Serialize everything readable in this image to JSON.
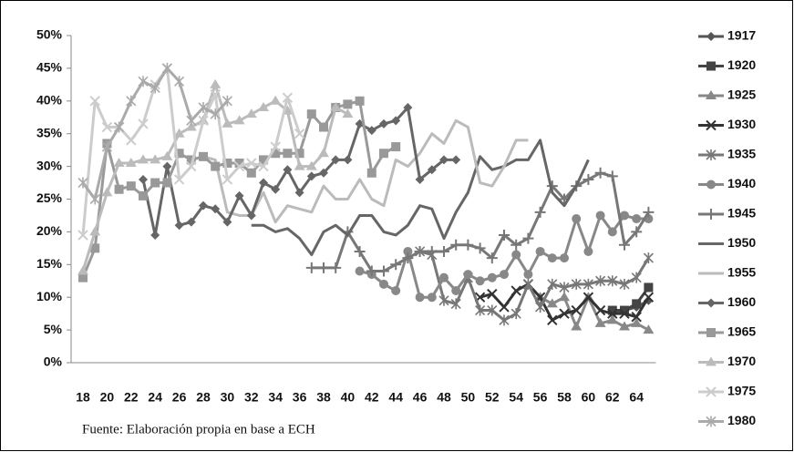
{
  "chart_data": {
    "type": "line",
    "source": "Fuente: Elaboración propia en base a ECH",
    "categories": [
      18,
      null,
      20,
      null,
      22,
      null,
      24,
      null,
      26,
      null,
      28,
      null,
      30,
      null,
      32,
      null,
      34,
      null,
      36,
      null,
      38,
      null,
      40,
      null,
      42,
      null,
      44,
      null,
      46,
      null,
      48,
      null,
      50,
      null,
      52,
      null,
      54,
      null,
      56,
      null,
      58,
      null,
      60,
      null,
      62,
      null,
      64,
      null
    ],
    "ylim": [
      0,
      50
    ],
    "yticks": [
      {
        "value": 0,
        "label": "0%"
      },
      {
        "value": 5,
        "label": "5%"
      },
      {
        "value": 10,
        "label": "10%"
      },
      {
        "value": 15,
        "label": "15%"
      },
      {
        "value": 20,
        "label": "20%"
      },
      {
        "value": 25,
        "label": "25%"
      },
      {
        "value": 30,
        "label": "30%"
      },
      {
        "value": 35,
        "label": "35%"
      },
      {
        "value": 40,
        "label": "40%"
      },
      {
        "value": 45,
        "label": "45%"
      },
      {
        "value": 50,
        "label": "50%"
      }
    ],
    "grid": false,
    "legend": "right",
    "series": [
      {
        "name": "1917",
        "color": "#555555",
        "marker": "diamond",
        "values": [
          null,
          null,
          null,
          null,
          null,
          null,
          null,
          null,
          null,
          null,
          null,
          null,
          null,
          null,
          null,
          null,
          null,
          null,
          null,
          null,
          null,
          null,
          null,
          null,
          null,
          null,
          null,
          null,
          null,
          null,
          null,
          null,
          null,
          null,
          null,
          null,
          null,
          null,
          null,
          null,
          null,
          null,
          null,
          null,
          7.5,
          8,
          8.5,
          9.5
        ]
      },
      {
        "name": "1920",
        "color": "#444444",
        "marker": "square",
        "values": [
          null,
          null,
          null,
          null,
          null,
          null,
          null,
          null,
          null,
          null,
          null,
          null,
          null,
          null,
          null,
          null,
          null,
          null,
          null,
          null,
          null,
          null,
          null,
          null,
          null,
          null,
          null,
          null,
          null,
          null,
          null,
          null,
          null,
          null,
          null,
          null,
          null,
          null,
          null,
          null,
          null,
          null,
          null,
          null,
          8,
          8,
          9,
          11.5
        ]
      },
      {
        "name": "1925",
        "color": "#888888",
        "marker": "triangle",
        "values": [
          null,
          null,
          null,
          null,
          null,
          null,
          null,
          null,
          null,
          null,
          null,
          null,
          null,
          null,
          null,
          null,
          null,
          null,
          null,
          null,
          null,
          null,
          null,
          null,
          null,
          null,
          null,
          null,
          null,
          null,
          null,
          null,
          null,
          null,
          null,
          null,
          null,
          null,
          10,
          9,
          10,
          5.5,
          10,
          6,
          6.5,
          5.5,
          6,
          5
        ]
      },
      {
        "name": "1930",
        "color": "#333333",
        "marker": "x",
        "values": [
          null,
          null,
          null,
          null,
          null,
          null,
          null,
          null,
          null,
          null,
          null,
          null,
          null,
          null,
          null,
          null,
          null,
          null,
          null,
          null,
          null,
          null,
          null,
          null,
          null,
          null,
          null,
          null,
          null,
          null,
          null,
          null,
          null,
          10,
          10.5,
          8.5,
          11,
          12,
          10,
          6.5,
          7.5,
          8,
          10,
          8,
          7.5,
          7.5,
          7,
          10
        ]
      },
      {
        "name": "1935",
        "color": "#777777",
        "marker": "star",
        "values": [
          null,
          null,
          null,
          null,
          null,
          null,
          null,
          null,
          null,
          null,
          null,
          null,
          null,
          null,
          null,
          null,
          null,
          null,
          null,
          null,
          null,
          null,
          null,
          null,
          null,
          null,
          null,
          null,
          17,
          16.5,
          9.5,
          9,
          13,
          8,
          8,
          6.5,
          7.5,
          12,
          8.5,
          12,
          11.5,
          12,
          12,
          12.5,
          12.5,
          12,
          13,
          16
        ]
      },
      {
        "name": "1940",
        "color": "#888888",
        "marker": "circle",
        "values": [
          null,
          null,
          null,
          null,
          null,
          null,
          null,
          null,
          null,
          null,
          null,
          null,
          null,
          null,
          null,
          null,
          null,
          null,
          null,
          null,
          null,
          null,
          null,
          14,
          13.5,
          12,
          11,
          17,
          10,
          10,
          13,
          11,
          13.5,
          12.5,
          13,
          13.5,
          16.5,
          13.5,
          17,
          16,
          16,
          22,
          17,
          22.5,
          20,
          22.5,
          22,
          22
        ]
      },
      {
        "name": "1945",
        "color": "#777777",
        "marker": "plus",
        "values": [
          null,
          null,
          null,
          null,
          null,
          null,
          null,
          null,
          null,
          null,
          null,
          null,
          null,
          null,
          null,
          null,
          null,
          null,
          null,
          14.5,
          14.5,
          14.5,
          20,
          17,
          14,
          14,
          15,
          16,
          17,
          17,
          17,
          18,
          18,
          17.5,
          16,
          19.5,
          18,
          19,
          23,
          27,
          25,
          27,
          28,
          29,
          28.5,
          18,
          20,
          23
        ]
      },
      {
        "name": "1950",
        "color": "#666666",
        "marker": "none",
        "values": [
          null,
          null,
          null,
          null,
          null,
          null,
          null,
          null,
          null,
          null,
          null,
          null,
          null,
          null,
          21,
          21,
          20,
          20.5,
          19,
          16.5,
          20,
          21,
          19.5,
          22.5,
          22.5,
          20,
          19.5,
          21,
          24,
          23.5,
          19,
          23,
          26,
          31.5,
          29.5,
          30,
          31,
          31,
          34,
          26,
          24,
          27,
          31,
          null,
          null,
          null,
          null,
          null
        ]
      },
      {
        "name": "1955",
        "color": "#bbbbbb",
        "marker": "none",
        "values": [
          null,
          null,
          null,
          null,
          null,
          null,
          null,
          null,
          null,
          31,
          31.5,
          31,
          23,
          22.5,
          22.5,
          26,
          21.5,
          24,
          23.5,
          23,
          27,
          25,
          25,
          28,
          25,
          24,
          31,
          30,
          32,
          35,
          33.5,
          37,
          36,
          27.5,
          27,
          30,
          34,
          34,
          null,
          null,
          null,
          null,
          null,
          null,
          null,
          null,
          null,
          null
        ]
      },
      {
        "name": "1960",
        "color": "#666666",
        "marker": "diamond",
        "values": [
          null,
          null,
          null,
          null,
          null,
          28,
          19.5,
          30,
          21,
          21.5,
          24,
          23.5,
          21.5,
          25.5,
          22.5,
          27.5,
          26.5,
          29.5,
          26,
          28.5,
          29,
          31,
          31,
          36.5,
          35.5,
          36.5,
          37,
          39,
          28,
          29.5,
          31,
          31,
          null,
          null,
          null,
          null,
          null,
          null,
          null,
          null,
          null,
          null,
          null,
          null,
          null,
          null,
          null,
          null
        ]
      },
      {
        "name": "1965",
        "color": "#999999",
        "marker": "square",
        "values": [
          13,
          17.5,
          33.5,
          26.5,
          27,
          25.5,
          27.5,
          27.5,
          32,
          31,
          31.5,
          30,
          30.5,
          30.5,
          29,
          31,
          32,
          32,
          32,
          38,
          36,
          39,
          39.5,
          40,
          29,
          32,
          33,
          null,
          null,
          null,
          null,
          null,
          null,
          null,
          null,
          null,
          null,
          null,
          null,
          null,
          null,
          null,
          null,
          null,
          null,
          null,
          null,
          null
        ]
      },
      {
        "name": "1970",
        "color": "#bbbbbb",
        "marker": "triangle",
        "values": [
          14,
          20,
          26,
          30.5,
          30.5,
          31,
          31,
          31.5,
          35,
          36,
          37,
          42.5,
          36.5,
          37,
          38,
          39,
          40,
          38.5,
          30,
          30,
          32,
          39,
          38,
          null,
          null,
          null,
          null,
          null,
          null,
          null,
          null,
          null,
          null,
          null,
          null,
          null,
          null,
          null,
          null,
          null,
          null,
          null,
          null,
          null,
          null,
          null,
          null,
          null
        ]
      },
      {
        "name": "1975",
        "color": "#cccccc",
        "marker": "x",
        "values": [
          19.5,
          40,
          36,
          36,
          34,
          36.5,
          42.5,
          45,
          28,
          30,
          37,
          41,
          28,
          30,
          30.5,
          30,
          33,
          40.5,
          35,
          null,
          null,
          null,
          null,
          null,
          null,
          null,
          null,
          null,
          null,
          null,
          null,
          null,
          null,
          null,
          null,
          null,
          null,
          null,
          null,
          null,
          null,
          null,
          null,
          null,
          null,
          null,
          null,
          null
        ]
      },
      {
        "name": "1980",
        "color": "#aaaaaa",
        "marker": "star",
        "values": [
          27.5,
          25,
          33,
          36,
          40,
          43,
          42,
          45,
          43,
          37,
          39,
          38,
          40,
          null,
          null,
          null,
          null,
          null,
          null,
          null,
          null,
          null,
          null,
          null,
          null,
          null,
          null,
          null,
          null,
          null,
          null,
          null,
          null,
          null,
          null,
          null,
          null,
          null,
          null,
          null,
          null,
          null,
          null,
          null,
          null,
          null,
          null,
          null
        ]
      }
    ]
  }
}
